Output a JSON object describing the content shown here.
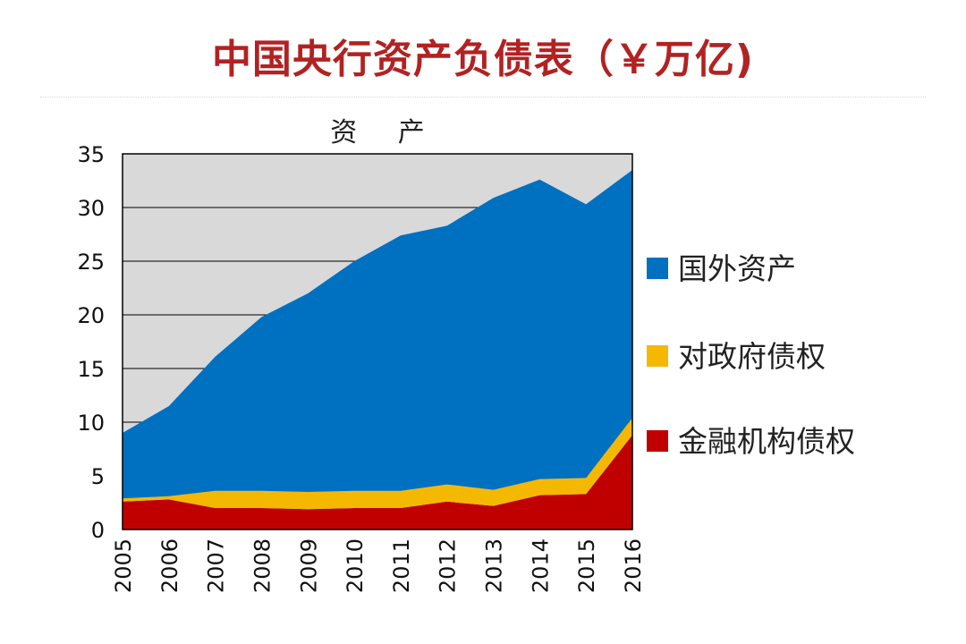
{
  "title": "中国央行资产负债表（￥万亿)",
  "chart_data": {
    "type": "area",
    "stacked": true,
    "title": "中国央行资产负债表（￥万亿)",
    "subtitle": "资 产",
    "categories": [
      "2005",
      "2006",
      "2007",
      "2008",
      "2009",
      "2010",
      "2011",
      "2012",
      "2013",
      "2014",
      "2015",
      "2016"
    ],
    "ylim": [
      0,
      35
    ],
    "yticks": [
      0,
      5,
      10,
      15,
      20,
      25,
      30,
      35
    ],
    "grid": true,
    "legend_position": "right",
    "background_color": "#d9d9d9",
    "series": [
      {
        "name": "金融机构债权",
        "color": "#c00000",
        "values": [
          2.6,
          2.8,
          2.0,
          2.0,
          1.9,
          2.0,
          2.0,
          2.6,
          2.2,
          3.2,
          3.3,
          8.8
        ]
      },
      {
        "name": "对政府债权",
        "color": "#f5b800",
        "values": [
          0.3,
          0.3,
          1.6,
          1.6,
          1.6,
          1.6,
          1.6,
          1.6,
          1.5,
          1.5,
          1.5,
          1.6
        ]
      },
      {
        "name": "国外资产",
        "color": "#0070c0",
        "values": [
          6.1,
          8.4,
          12.5,
          16.2,
          18.5,
          21.4,
          23.8,
          24.1,
          27.2,
          27.9,
          25.5,
          23.1
        ]
      }
    ],
    "legend_order": [
      "国外资产",
      "对政府债权",
      "金融机构债权"
    ]
  }
}
